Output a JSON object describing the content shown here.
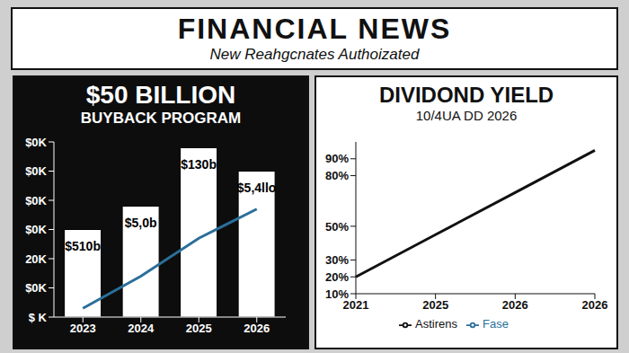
{
  "header": {
    "title": "FINANCIAL NEWS",
    "subtitle": "New Reahgcnates Authoizated"
  },
  "chart_data": [
    {
      "type": "bar",
      "title": "$50 BILLION",
      "subtitle": "BUYBACK PROGRAM",
      "categories": [
        "2023",
        "2024",
        "2025",
        "2026"
      ],
      "series": [
        {
          "type": "bar",
          "color": "#ffffff",
          "values": [
            30,
            38,
            58,
            50
          ]
        },
        {
          "type": "line",
          "color": "#2a6f9a",
          "values": [
            3,
            14,
            27,
            37
          ]
        }
      ],
      "annotations": [
        "$510b",
        "$5,0b",
        "$130b",
        "$5,4llo"
      ],
      "ylim": [
        0,
        60
      ],
      "yticks": [
        {
          "value": 0,
          "label": "$ K"
        },
        {
          "value": 10,
          "label": "$0K"
        },
        {
          "value": 20,
          "label": "20K"
        },
        {
          "value": 30,
          "label": "$0K"
        },
        {
          "value": 40,
          "label": "$0K"
        },
        {
          "value": 50,
          "label": "$0K"
        },
        {
          "value": 60,
          "label": "$0K"
        }
      ],
      "grid": false
    },
    {
      "type": "line",
      "title": "DIVIDOND YIELD",
      "subtitle": "10/4UA DD 2026",
      "categories": [
        "2021",
        "2025",
        "2026",
        "2026"
      ],
      "series": [
        {
          "name": "Fase",
          "color": "#2a6f9a",
          "values": [
            null,
            null,
            null,
            null
          ]
        },
        {
          "name": "Astirens",
          "color": "#111111",
          "values": [
            20,
            45,
            70,
            95
          ]
        }
      ],
      "ylim": [
        10,
        100
      ],
      "yticks": [
        {
          "value": 10,
          "label": "10%"
        },
        {
          "value": 20,
          "label": "20%"
        },
        {
          "value": 30,
          "label": "30%"
        },
        {
          "value": 50,
          "label": "50%"
        },
        {
          "value": 80,
          "label": "80%"
        },
        {
          "value": 90,
          "label": "90%"
        }
      ],
      "legend": "bottom",
      "grid": false
    }
  ]
}
